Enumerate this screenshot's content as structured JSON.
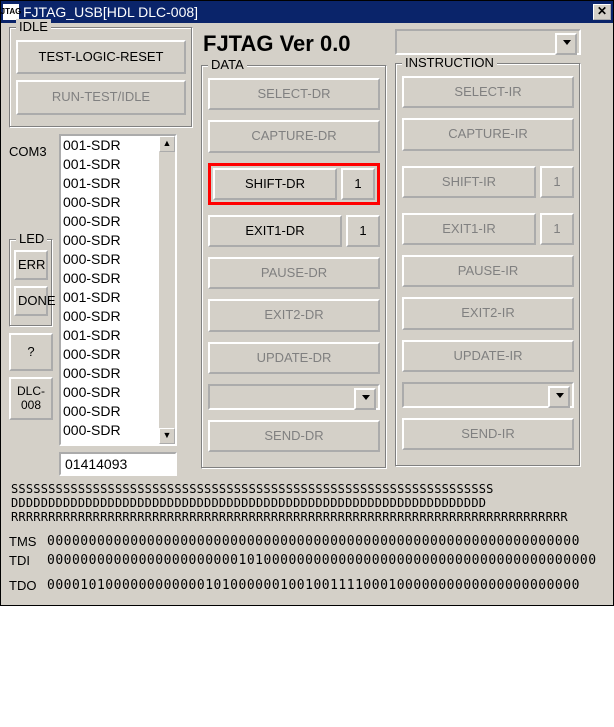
{
  "window": {
    "title": "FJTAG_USB[HDL DLC-008]",
    "icon_text": "JTAG"
  },
  "version_label": "FJTAG Ver 0.0",
  "groups": {
    "idle": "IDLE",
    "led": "LED",
    "data": "DATA",
    "instruction": "INSTRUCTION"
  },
  "idle": {
    "test_logic_reset": "TEST-LOGIC-RESET",
    "run_test_idle": "RUN-TEST/IDLE"
  },
  "com": {
    "label": "COM3",
    "items": [
      "001-SDR",
      "001-SDR",
      "001-SDR",
      "000-SDR",
      "000-SDR",
      "000-SDR",
      "000-SDR",
      "000-SDR",
      "001-SDR",
      "000-SDR",
      "001-SDR",
      "000-SDR",
      "000-SDR",
      "000-SDR",
      "000-SDR",
      "000-SDR"
    ],
    "readout": "01414093"
  },
  "led": {
    "err": "ERR",
    "done": "DONE"
  },
  "misc": {
    "help": "?",
    "dlc": "DLC-008"
  },
  "data_btns": {
    "select_dr": "SELECT-DR",
    "capture_dr": "CAPTURE-DR",
    "shift_dr": "SHIFT-DR",
    "shift_dr_val": "1",
    "exit1_dr": "EXIT1-DR",
    "exit1_dr_val": "1",
    "pause_dr": "PAUSE-DR",
    "exit2_dr": "EXIT2-DR",
    "update_dr": "UPDATE-DR",
    "send_dr": "SEND-DR"
  },
  "instr_btns": {
    "select_ir": "SELECT-IR",
    "capture_ir": "CAPTURE-IR",
    "shift_ir": "SHIFT-IR",
    "shift_ir_val": "1",
    "exit1_ir": "EXIT1-IR",
    "exit1_ir_val": "1",
    "pause_ir": "PAUSE-IR",
    "exit2_ir": "EXIT2-IR",
    "update_ir": "UPDATE-IR",
    "send_ir": "SEND-IR"
  },
  "streams": {
    "s_line": "SSSSSSSSSSSSSSSSSSSSSSSSSSSSSSSSSSSSSSSSSSSSSSSSSSSSSSSSSSSSSSSSS",
    "d_line": "DDDDDDDDDDDDDDDDDDDDDDDDDDDDDDDDDDDDDDDDDDDDDDDDDDDDDDDDDDDDDDDD",
    "r_line": "RRRRRRRRRRRRRRRRRRRRRRRRRRRRRRRRRRRRRRRRRRRRRRRRRRRRRRRRRRRRRRRRRRRRRRRRRRR"
  },
  "signals": {
    "tms": {
      "label": "TMS",
      "value": "0000000000000000000000000000000000000000000000000000000000000000"
    },
    "tdi": {
      "label": "TDI",
      "value": "000000000000000000000001010000000000000000000000000000000000000000"
    },
    "tdo": {
      "label": "TDO",
      "value": "0000101000000000000101000000100100111100010000000000000000000000"
    }
  },
  "colors": {
    "window_bg": "#d4d0c8",
    "titlebar_bg": "#0a246a",
    "titlebar_fg": "#ffffff",
    "highlight_border": "#ff0000",
    "disabled_text": "#808080",
    "text": "#000000"
  }
}
